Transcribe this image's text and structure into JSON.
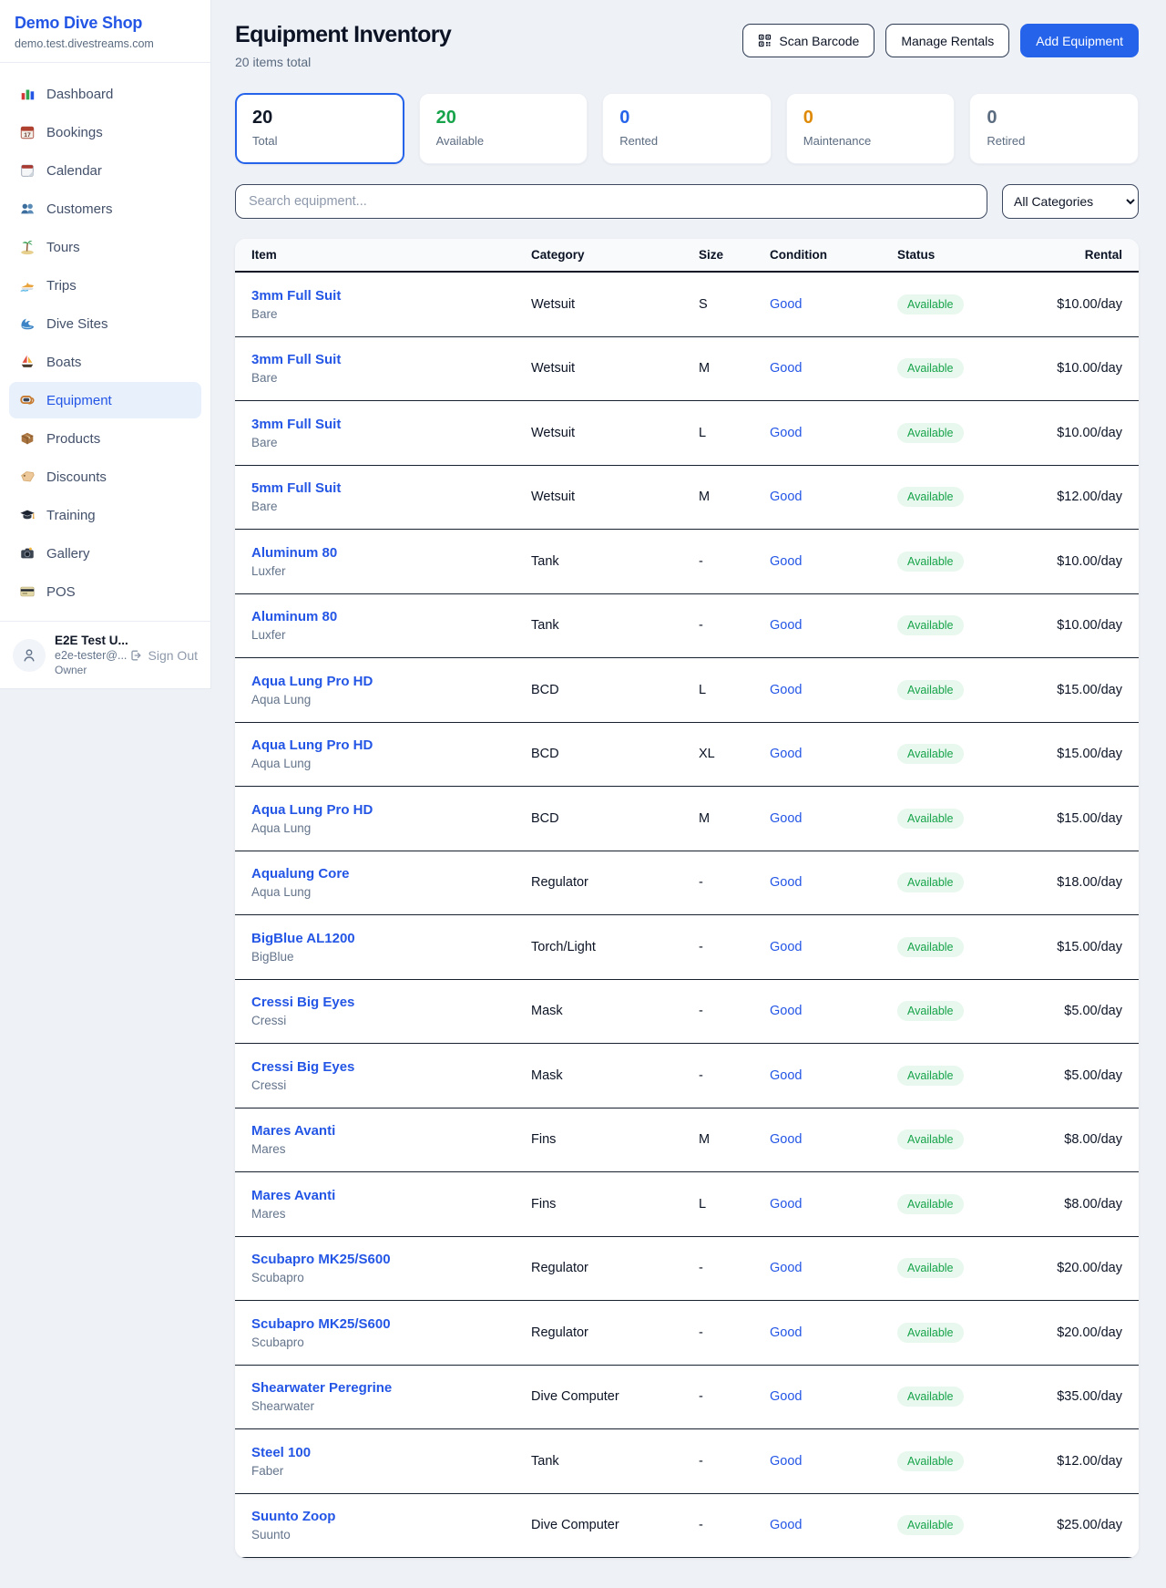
{
  "sidebar": {
    "brand": {
      "name": "Demo Dive Shop",
      "domain": "demo.test.divestreams.com"
    },
    "items": [
      {
        "label": "Dashboard",
        "icon": "bar-chart-icon"
      },
      {
        "label": "Bookings",
        "icon": "bookings-calendar-icon"
      },
      {
        "label": "Calendar",
        "icon": "calendar-pad-icon"
      },
      {
        "label": "Customers",
        "icon": "people-icon"
      },
      {
        "label": "Tours",
        "icon": "palm-island-icon"
      },
      {
        "label": "Trips",
        "icon": "speedboat-icon"
      },
      {
        "label": "Dive Sites",
        "icon": "wave-icon"
      },
      {
        "label": "Boats",
        "icon": "sailboat-icon"
      },
      {
        "label": "Equipment",
        "icon": "dive-mask-icon",
        "active": true
      },
      {
        "label": "Products",
        "icon": "package-icon"
      },
      {
        "label": "Discounts",
        "icon": "tag-icon"
      },
      {
        "label": "Training",
        "icon": "grad-cap-icon"
      },
      {
        "label": "Gallery",
        "icon": "camera-icon"
      },
      {
        "label": "POS",
        "icon": "credit-card-icon"
      }
    ],
    "user": {
      "name": "E2E Test U...",
      "email": "e2e-tester@...",
      "role": "Owner",
      "signout_label": "Sign Out"
    }
  },
  "header": {
    "title": "Equipment Inventory",
    "subtitle": "20 items total",
    "scan_label": "Scan Barcode",
    "rentals_label": "Manage Rentals",
    "add_label": "Add Equipment"
  },
  "stats": [
    {
      "value": "20",
      "label": "Total",
      "color": "#101828",
      "selected": true
    },
    {
      "value": "20",
      "label": "Available",
      "color": "#16a34a"
    },
    {
      "value": "0",
      "label": "Rented",
      "color": "#2563eb"
    },
    {
      "value": "0",
      "label": "Maintenance",
      "color": "#df8a06"
    },
    {
      "value": "0",
      "label": "Retired",
      "color": "#5b6b80"
    }
  ],
  "filters": {
    "search_placeholder": "Search equipment...",
    "category_selected": "All Categories"
  },
  "table": {
    "columns": {
      "item": "Item",
      "category": "Category",
      "size": "Size",
      "condition": "Condition",
      "status": "Status",
      "rental": "Rental"
    },
    "rows": [
      {
        "name": "3mm Full Suit",
        "brand": "Bare",
        "category": "Wetsuit",
        "size": "S",
        "condition": "Good",
        "status": "Available",
        "rental": "$10.00/day"
      },
      {
        "name": "3mm Full Suit",
        "brand": "Bare",
        "category": "Wetsuit",
        "size": "M",
        "condition": "Good",
        "status": "Available",
        "rental": "$10.00/day"
      },
      {
        "name": "3mm Full Suit",
        "brand": "Bare",
        "category": "Wetsuit",
        "size": "L",
        "condition": "Good",
        "status": "Available",
        "rental": "$10.00/day"
      },
      {
        "name": "5mm Full Suit",
        "brand": "Bare",
        "category": "Wetsuit",
        "size": "M",
        "condition": "Good",
        "status": "Available",
        "rental": "$12.00/day"
      },
      {
        "name": "Aluminum 80",
        "brand": "Luxfer",
        "category": "Tank",
        "size": "-",
        "condition": "Good",
        "status": "Available",
        "rental": "$10.00/day"
      },
      {
        "name": "Aluminum 80",
        "brand": "Luxfer",
        "category": "Tank",
        "size": "-",
        "condition": "Good",
        "status": "Available",
        "rental": "$10.00/day"
      },
      {
        "name": "Aqua Lung Pro HD",
        "brand": "Aqua Lung",
        "category": "BCD",
        "size": "L",
        "condition": "Good",
        "status": "Available",
        "rental": "$15.00/day"
      },
      {
        "name": "Aqua Lung Pro HD",
        "brand": "Aqua Lung",
        "category": "BCD",
        "size": "XL",
        "condition": "Good",
        "status": "Available",
        "rental": "$15.00/day"
      },
      {
        "name": "Aqua Lung Pro HD",
        "brand": "Aqua Lung",
        "category": "BCD",
        "size": "M",
        "condition": "Good",
        "status": "Available",
        "rental": "$15.00/day"
      },
      {
        "name": "Aqualung Core",
        "brand": "Aqua Lung",
        "category": "Regulator",
        "size": "-",
        "condition": "Good",
        "status": "Available",
        "rental": "$18.00/day"
      },
      {
        "name": "BigBlue AL1200",
        "brand": "BigBlue",
        "category": "Torch/Light",
        "size": "-",
        "condition": "Good",
        "status": "Available",
        "rental": "$15.00/day"
      },
      {
        "name": "Cressi Big Eyes",
        "brand": "Cressi",
        "category": "Mask",
        "size": "-",
        "condition": "Good",
        "status": "Available",
        "rental": "$5.00/day"
      },
      {
        "name": "Cressi Big Eyes",
        "brand": "Cressi",
        "category": "Mask",
        "size": "-",
        "condition": "Good",
        "status": "Available",
        "rental": "$5.00/day"
      },
      {
        "name": "Mares Avanti",
        "brand": "Mares",
        "category": "Fins",
        "size": "M",
        "condition": "Good",
        "status": "Available",
        "rental": "$8.00/day"
      },
      {
        "name": "Mares Avanti",
        "brand": "Mares",
        "category": "Fins",
        "size": "L",
        "condition": "Good",
        "status": "Available",
        "rental": "$8.00/day"
      },
      {
        "name": "Scubapro MK25/S600",
        "brand": "Scubapro",
        "category": "Regulator",
        "size": "-",
        "condition": "Good",
        "status": "Available",
        "rental": "$20.00/day"
      },
      {
        "name": "Scubapro MK25/S600",
        "brand": "Scubapro",
        "category": "Regulator",
        "size": "-",
        "condition": "Good",
        "status": "Available",
        "rental": "$20.00/day"
      },
      {
        "name": "Shearwater Peregrine",
        "brand": "Shearwater",
        "category": "Dive Computer",
        "size": "-",
        "condition": "Good",
        "status": "Available",
        "rental": "$35.00/day"
      },
      {
        "name": "Steel 100",
        "brand": "Faber",
        "category": "Tank",
        "size": "-",
        "condition": "Good",
        "status": "Available",
        "rental": "$12.00/day"
      },
      {
        "name": "Suunto Zoop",
        "brand": "Suunto",
        "category": "Dive Computer",
        "size": "-",
        "condition": "Good",
        "status": "Available",
        "rental": "$25.00/day"
      }
    ]
  }
}
